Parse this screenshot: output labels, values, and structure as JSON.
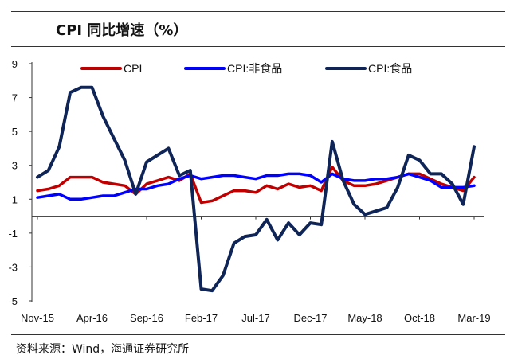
{
  "chart_data": {
    "type": "line",
    "title": "CPI 同比增速（%）",
    "source": "资料来源：Wind，海通证券研究所",
    "xlabel": "",
    "ylabel": "",
    "ylim": [
      -5,
      9
    ],
    "yticks": [
      "9",
      "7",
      "5",
      "3",
      "1",
      "-1",
      "-3",
      "-5"
    ],
    "ytick_values": [
      9,
      7,
      5,
      3,
      1,
      -1,
      -3,
      -5
    ],
    "xtick_labels": [
      "Nov-15",
      "Apr-16",
      "Sep-16",
      "Feb-17",
      "Jul-17",
      "Dec-17",
      "May-18",
      "Oct-18",
      "Mar-19"
    ],
    "xtick_index": [
      0,
      5,
      10,
      15,
      20,
      25,
      30,
      35,
      40
    ],
    "x_count": 41,
    "legend_position": "top",
    "series": [
      {
        "name": "CPI",
        "color": "#C00000",
        "values": [
          1.5,
          1.6,
          1.8,
          2.3,
          2.3,
          2.3,
          2.0,
          1.9,
          1.8,
          1.3,
          1.9,
          2.1,
          2.3,
          2.1,
          2.5,
          0.8,
          0.9,
          1.2,
          1.5,
          1.5,
          1.4,
          1.8,
          1.6,
          1.9,
          1.7,
          1.8,
          1.5,
          2.9,
          2.1,
          1.8,
          1.8,
          1.9,
          2.1,
          2.3,
          2.5,
          2.5,
          2.2,
          1.9,
          1.7,
          1.5,
          2.3
        ]
      },
      {
        "name": "CPI:非食品",
        "color": "#0000FF",
        "values": [
          1.1,
          1.2,
          1.3,
          1.0,
          1.0,
          1.1,
          1.2,
          1.2,
          1.4,
          1.6,
          1.6,
          1.8,
          1.9,
          2.2,
          2.4,
          2.2,
          2.3,
          2.4,
          2.4,
          2.3,
          2.2,
          2.4,
          2.4,
          2.5,
          2.5,
          2.4,
          2.0,
          2.5,
          2.2,
          2.1,
          2.1,
          2.2,
          2.2,
          2.3,
          2.5,
          2.3,
          2.1,
          1.7,
          1.7,
          1.7,
          1.8
        ]
      },
      {
        "name": "CPI:食品",
        "color": "#0F2557",
        "values": [
          2.3,
          2.7,
          4.1,
          7.3,
          7.6,
          7.6,
          5.9,
          4.6,
          3.3,
          1.3,
          3.2,
          3.6,
          4.0,
          2.4,
          2.7,
          -4.3,
          -4.4,
          -3.5,
          -1.6,
          -1.2,
          -1.1,
          -0.2,
          -1.4,
          -0.4,
          -1.1,
          -0.4,
          -0.5,
          4.4,
          2.1,
          0.7,
          0.1,
          0.3,
          0.5,
          1.7,
          3.6,
          3.3,
          2.5,
          2.5,
          1.9,
          0.7,
          4.1
        ]
      }
    ]
  }
}
